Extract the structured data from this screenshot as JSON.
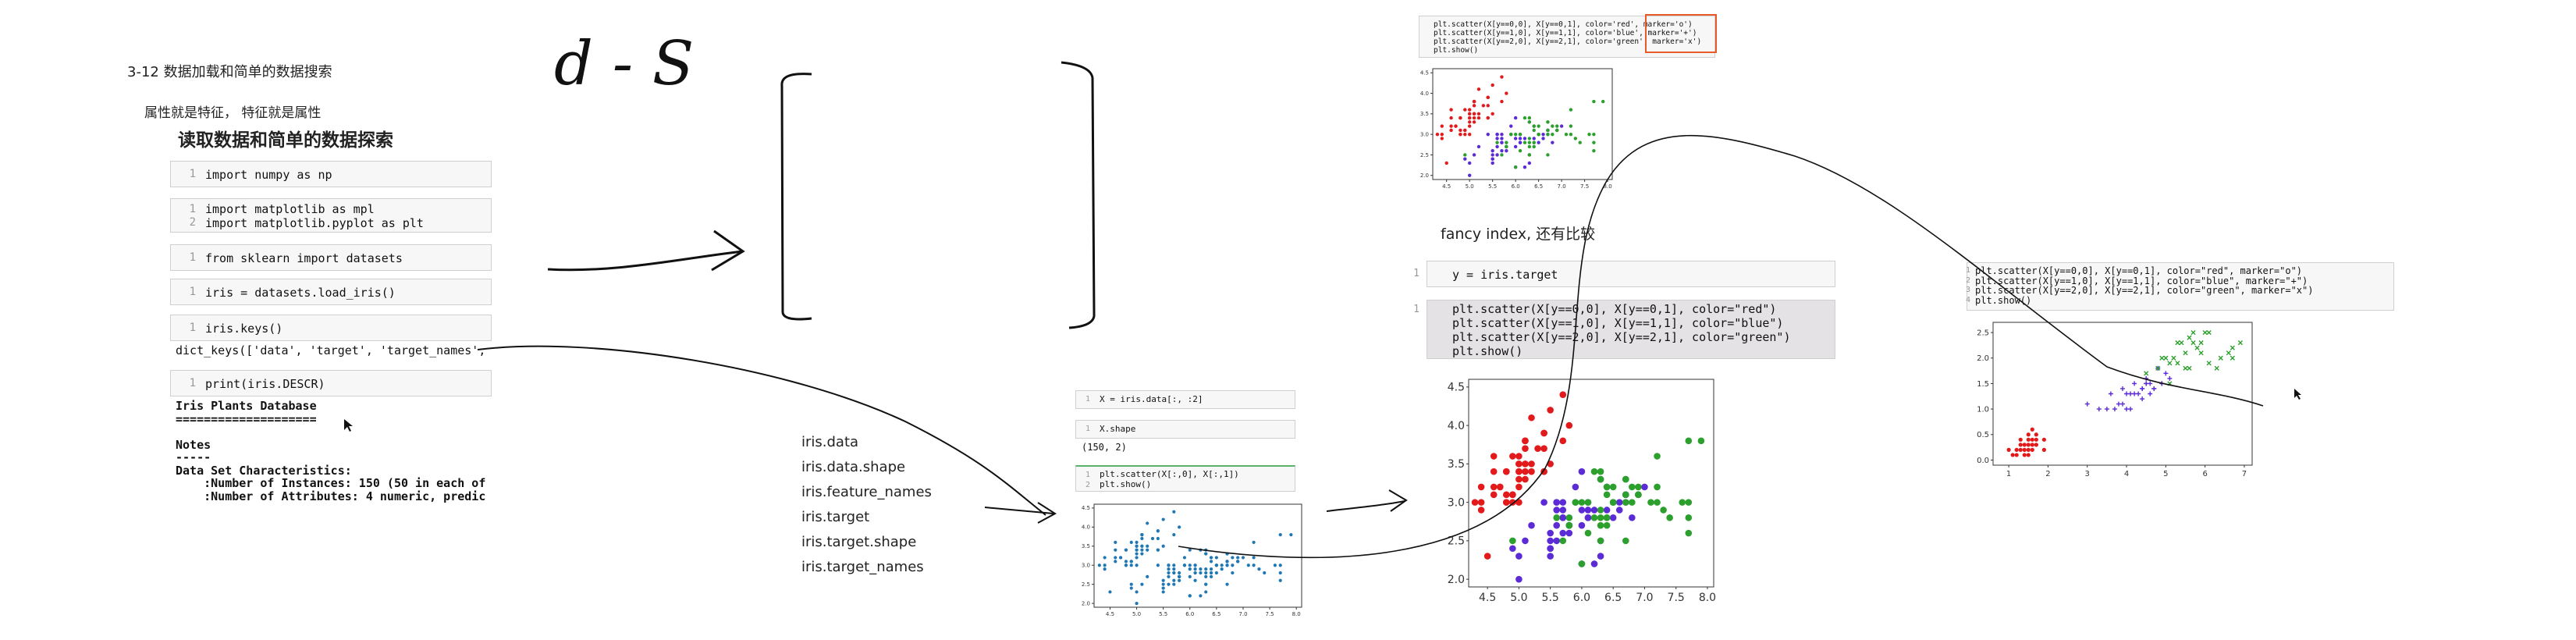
{
  "left": {
    "lesson_title": "3-12 数据加载和简单的数据搜索",
    "note": "属性就是特征， 特征就是属性",
    "notebook_title": "读取数据和简单的数据探索",
    "cells": [
      {
        "n": "1",
        "code": "import numpy as np"
      },
      {
        "n": "1\n2",
        "code": "import matplotlib as mpl\nimport matplotlib.pyplot as plt"
      },
      {
        "n": "1",
        "code": "from sklearn import datasets"
      },
      {
        "n": "1",
        "code": "iris = datasets.load_iris()"
      },
      {
        "n": "1",
        "code": "iris.keys()"
      },
      {
        "n": "1",
        "code": "print(iris.DESCR)"
      }
    ],
    "keys_output": "dict_keys(['data', 'target', 'target_names',",
    "descr_output": "Iris Plants Database\n====================\n\nNotes\n-----\nData Set Characteristics:\n    :Number of Instances: 150 (50 in each of\n    :Number of Attributes: 4 numeric, predic"
  },
  "handwriting": {
    "label": "d - S"
  },
  "attributes_list": [
    "iris.data",
    "iris.data.shape",
    "iris.feature_names",
    "iris.target",
    "iris.target.shape",
    "iris.target_names"
  ],
  "mid_notebook": {
    "cells": [
      {
        "n": "1",
        "code": "X = iris.data[:, :2]"
      },
      {
        "n": "1",
        "code": "X.shape"
      },
      {
        "n": "1\n2",
        "code": "plt.scatter(X[:,0], X[:,1])\nplt.show()"
      }
    ],
    "shape_output": "(150, 2)"
  },
  "top_right": {
    "code": "plt.scatter(X[y==0,0], X[y==0,1], color='red', marker='o')\nplt.scatter(X[y==1,0], X[y==1,1], color='blue', marker='+')\nplt.scatter(X[y==2,0], X[y==2,1], color='green', marker='x')\nplt.show()",
    "caption": "fancy index, 还有比较",
    "target_cell": "y = iris.target",
    "scatter_cell": "plt.scatter(X[y==0,0], X[y==0,1], color=\"red\")\nplt.scatter(X[y==1,0], X[y==1,1], color=\"blue\")\nplt.scatter(X[y==2,0], X[y==2,1], color=\"green\")\nplt.show()"
  },
  "far_right": {
    "code": "plt.scatter(X[y==0,0], X[y==0,1], color=\"red\", marker=\"o\")\nplt.scatter(X[y==1,0], X[y==1,1], color=\"blue\", marker=\"+\")\nplt.scatter(X[y==2,0], X[y==2,1], color=\"green\", marker=\"x\")\nplt.show()"
  },
  "colors": {
    "red": "#e31a1c",
    "blue": "#5b2bd6",
    "green": "#2ca02c",
    "default": "#1f77b4"
  },
  "chart_data": [
    {
      "type": "scatter",
      "name_ref": "small-top",
      "xticks": [
        "4.5",
        "5.0",
        "5.5",
        "6.0",
        "6.5",
        "7.0",
        "7.5",
        "8.0"
      ],
      "yticks": [
        "2.0",
        "2.5",
        "3.0",
        "3.5",
        "4.0",
        "4.5"
      ],
      "xlim": [
        4.2,
        8.1
      ],
      "ylim": [
        1.9,
        4.6
      ]
    },
    {
      "type": "scatter",
      "name_ref": "mid-default",
      "xticks": [
        "4.5",
        "5.0",
        "5.5",
        "6.0",
        "6.5",
        "7.0",
        "7.5",
        "8.0"
      ],
      "yticks": [
        "2.0",
        "2.5",
        "3.0",
        "3.5",
        "4.0",
        "4.5"
      ],
      "xlim": [
        4.2,
        8.1
      ],
      "ylim": [
        1.9,
        4.6
      ]
    },
    {
      "type": "scatter",
      "name_ref": "large-colored",
      "xticks": [
        "4.5",
        "5.0",
        "5.5",
        "6.0",
        "6.5",
        "7.0",
        "7.5",
        "8.0"
      ],
      "yticks": [
        "2.0",
        "2.5",
        "3.0",
        "3.5",
        "4.0",
        "4.5"
      ],
      "xlim": [
        4.2,
        8.1
      ],
      "ylim": [
        1.9,
        4.6
      ]
    },
    {
      "type": "scatter",
      "name_ref": "petal",
      "xticks": [
        "1",
        "2",
        "3",
        "4",
        "5",
        "6",
        "7"
      ],
      "yticks": [
        "0.0",
        "0.5",
        "1.0",
        "1.5",
        "2.0",
        "2.5"
      ],
      "xlim": [
        0.6,
        7.2
      ],
      "ylim": [
        -0.1,
        2.7
      ]
    }
  ],
  "iris_sepal": {
    "setosa": [
      [
        5.1,
        3.5
      ],
      [
        4.9,
        3.0
      ],
      [
        4.7,
        3.2
      ],
      [
        4.6,
        3.1
      ],
      [
        5.0,
        3.6
      ],
      [
        5.4,
        3.9
      ],
      [
        4.6,
        3.4
      ],
      [
        5.0,
        3.4
      ],
      [
        4.4,
        2.9
      ],
      [
        4.9,
        3.1
      ],
      [
        5.4,
        3.7
      ],
      [
        4.8,
        3.4
      ],
      [
        4.8,
        3.0
      ],
      [
        4.3,
        3.0
      ],
      [
        5.8,
        4.0
      ],
      [
        5.7,
        4.4
      ],
      [
        5.4,
        3.9
      ],
      [
        5.1,
        3.5
      ],
      [
        5.7,
        3.8
      ],
      [
        5.1,
        3.8
      ],
      [
        5.4,
        3.4
      ],
      [
        5.1,
        3.7
      ],
      [
        4.6,
        3.6
      ],
      [
        5.1,
        3.3
      ],
      [
        4.8,
        3.4
      ],
      [
        5.0,
        3.0
      ],
      [
        5.0,
        3.4
      ],
      [
        5.2,
        3.5
      ],
      [
        5.2,
        3.4
      ],
      [
        4.7,
        3.2
      ],
      [
        4.8,
        3.1
      ],
      [
        5.4,
        3.4
      ],
      [
        5.2,
        4.1
      ],
      [
        5.5,
        4.2
      ],
      [
        4.9,
        3.1
      ],
      [
        5.0,
        3.2
      ],
      [
        5.5,
        3.5
      ],
      [
        4.9,
        3.6
      ],
      [
        4.4,
        3.0
      ],
      [
        5.1,
        3.4
      ],
      [
        5.0,
        3.5
      ],
      [
        4.5,
        2.3
      ],
      [
        4.4,
        3.2
      ],
      [
        5.0,
        3.5
      ],
      [
        5.1,
        3.8
      ],
      [
        4.8,
        3.0
      ],
      [
        5.1,
        3.8
      ],
      [
        4.6,
        3.2
      ],
      [
        5.3,
        3.7
      ],
      [
        5.0,
        3.3
      ]
    ],
    "versicolor": [
      [
        7.0,
        3.2
      ],
      [
        6.4,
        3.2
      ],
      [
        6.9,
        3.1
      ],
      [
        5.5,
        2.3
      ],
      [
        6.5,
        2.8
      ],
      [
        5.7,
        2.8
      ],
      [
        6.3,
        3.3
      ],
      [
        4.9,
        2.4
      ],
      [
        6.6,
        2.9
      ],
      [
        5.2,
        2.7
      ],
      [
        5.0,
        2.0
      ],
      [
        5.9,
        3.0
      ],
      [
        6.0,
        2.2
      ],
      [
        6.1,
        2.9
      ],
      [
        5.6,
        2.9
      ],
      [
        6.7,
        3.1
      ],
      [
        5.6,
        3.0
      ],
      [
        5.8,
        2.7
      ],
      [
        6.2,
        2.2
      ],
      [
        5.6,
        2.5
      ],
      [
        5.9,
        3.2
      ],
      [
        6.1,
        2.8
      ],
      [
        6.3,
        2.5
      ],
      [
        6.1,
        2.8
      ],
      [
        6.4,
        2.9
      ],
      [
        6.6,
        3.0
      ],
      [
        6.8,
        2.8
      ],
      [
        6.7,
        3.0
      ],
      [
        6.0,
        2.9
      ],
      [
        5.7,
        2.6
      ],
      [
        5.5,
        2.4
      ],
      [
        5.5,
        2.4
      ],
      [
        5.8,
        2.7
      ],
      [
        6.0,
        2.7
      ],
      [
        5.4,
        3.0
      ],
      [
        6.0,
        3.4
      ],
      [
        6.7,
        3.1
      ],
      [
        6.3,
        2.3
      ],
      [
        5.6,
        3.0
      ],
      [
        5.5,
        2.5
      ],
      [
        5.5,
        2.6
      ],
      [
        6.1,
        3.0
      ],
      [
        5.8,
        2.6
      ],
      [
        5.0,
        2.3
      ],
      [
        5.6,
        2.7
      ],
      [
        5.7,
        3.0
      ],
      [
        5.7,
        2.9
      ],
      [
        6.2,
        2.9
      ],
      [
        5.1,
        2.5
      ],
      [
        5.7,
        2.8
      ]
    ],
    "virginica": [
      [
        6.3,
        3.3
      ],
      [
        5.8,
        2.7
      ],
      [
        7.1,
        3.0
      ],
      [
        6.3,
        2.9
      ],
      [
        6.5,
        3.0
      ],
      [
        7.6,
        3.0
      ],
      [
        4.9,
        2.5
      ],
      [
        7.3,
        2.9
      ],
      [
        6.7,
        2.5
      ],
      [
        7.2,
        3.6
      ],
      [
        6.5,
        3.2
      ],
      [
        6.4,
        2.7
      ],
      [
        6.8,
        3.0
      ],
      [
        5.7,
        2.5
      ],
      [
        5.8,
        2.8
      ],
      [
        6.4,
        3.2
      ],
      [
        6.5,
        3.0
      ],
      [
        7.7,
        3.8
      ],
      [
        7.7,
        2.6
      ],
      [
        6.0,
        2.2
      ],
      [
        6.9,
        3.2
      ],
      [
        5.6,
        2.8
      ],
      [
        7.7,
        2.8
      ],
      [
        6.3,
        2.7
      ],
      [
        6.7,
        3.3
      ],
      [
        7.2,
        3.2
      ],
      [
        6.2,
        2.8
      ],
      [
        6.1,
        3.0
      ],
      [
        6.4,
        2.8
      ],
      [
        7.2,
        3.0
      ],
      [
        7.4,
        2.8
      ],
      [
        7.9,
        3.8
      ],
      [
        6.4,
        2.8
      ],
      [
        6.3,
        2.8
      ],
      [
        6.1,
        2.6
      ],
      [
        7.7,
        3.0
      ],
      [
        6.3,
        3.4
      ],
      [
        6.4,
        3.1
      ],
      [
        6.0,
        3.0
      ],
      [
        6.9,
        3.1
      ],
      [
        6.7,
        3.1
      ],
      [
        6.9,
        3.1
      ],
      [
        5.8,
        2.7
      ],
      [
        6.8,
        3.2
      ],
      [
        6.7,
        3.3
      ],
      [
        6.7,
        3.0
      ],
      [
        6.3,
        2.5
      ],
      [
        6.5,
        3.0
      ],
      [
        6.2,
        3.4
      ],
      [
        5.9,
        3.0
      ]
    ]
  },
  "iris_petal": {
    "setosa": [
      [
        1.4,
        0.2
      ],
      [
        1.3,
        0.2
      ],
      [
        1.5,
        0.2
      ],
      [
        1.7,
        0.4
      ],
      [
        1.4,
        0.3
      ],
      [
        1.5,
        0.1
      ],
      [
        1.6,
        0.2
      ],
      [
        1.1,
        0.1
      ],
      [
        1.2,
        0.2
      ],
      [
        1.3,
        0.4
      ],
      [
        1.7,
        0.3
      ],
      [
        1.5,
        0.4
      ],
      [
        1.0,
        0.2
      ],
      [
        1.9,
        0.4
      ],
      [
        1.6,
        0.6
      ],
      [
        1.4,
        0.1
      ],
      [
        1.5,
        0.3
      ],
      [
        1.3,
        0.3
      ],
      [
        1.6,
        0.4
      ],
      [
        1.9,
        0.2
      ],
      [
        1.2,
        0.1
      ],
      [
        1.7,
        0.5
      ],
      [
        1.5,
        0.5
      ],
      [
        1.6,
        0.3
      ]
    ],
    "versicolor": [
      [
        4.7,
        1.4
      ],
      [
        4.5,
        1.5
      ],
      [
        4.9,
        1.5
      ],
      [
        4.0,
        1.3
      ],
      [
        4.6,
        1.5
      ],
      [
        3.3,
        1.0
      ],
      [
        4.6,
        1.3
      ],
      [
        3.9,
        1.4
      ],
      [
        3.5,
        1.0
      ],
      [
        4.2,
        1.5
      ],
      [
        4.0,
        1.0
      ],
      [
        4.7,
        1.4
      ],
      [
        3.6,
        1.3
      ],
      [
        4.4,
        1.4
      ],
      [
        4.1,
        1.0
      ],
      [
        4.5,
        1.5
      ],
      [
        3.9,
        1.1
      ],
      [
        4.8,
        1.8
      ],
      [
        4.9,
        1.5
      ],
      [
        4.3,
        1.3
      ],
      [
        4.4,
        1.4
      ],
      [
        5.0,
        1.7
      ],
      [
        3.8,
        1.1
      ],
      [
        3.7,
        1.0
      ],
      [
        5.1,
        1.6
      ],
      [
        4.4,
        1.2
      ],
      [
        3.0,
        1.1
      ],
      [
        4.2,
        1.3
      ],
      [
        4.1,
        1.3
      ],
      [
        4.5,
        1.6
      ]
    ],
    "virginica": [
      [
        6.0,
        2.5
      ],
      [
        5.1,
        1.9
      ],
      [
        5.9,
        2.1
      ],
      [
        5.6,
        1.8
      ],
      [
        5.8,
        2.2
      ],
      [
        6.6,
        2.1
      ],
      [
        4.5,
        1.7
      ],
      [
        6.3,
        1.8
      ],
      [
        6.1,
        2.5
      ],
      [
        5.3,
        1.9
      ],
      [
        5.5,
        2.1
      ],
      [
        5.0,
        2.0
      ],
      [
        6.7,
        2.2
      ],
      [
        6.9,
        2.3
      ],
      [
        5.7,
        2.3
      ],
      [
        4.9,
        2.0
      ],
      [
        6.4,
        2.0
      ],
      [
        5.4,
        2.3
      ],
      [
        5.2,
        2.0
      ],
      [
        4.8,
        1.8
      ],
      [
        6.1,
        1.9
      ],
      [
        5.6,
        2.4
      ],
      [
        5.1,
        1.5
      ],
      [
        5.9,
        2.3
      ],
      [
        5.7,
        2.5
      ],
      [
        5.5,
        1.8
      ],
      [
        6.7,
        2.0
      ],
      [
        5.3,
        2.3
      ]
    ]
  }
}
